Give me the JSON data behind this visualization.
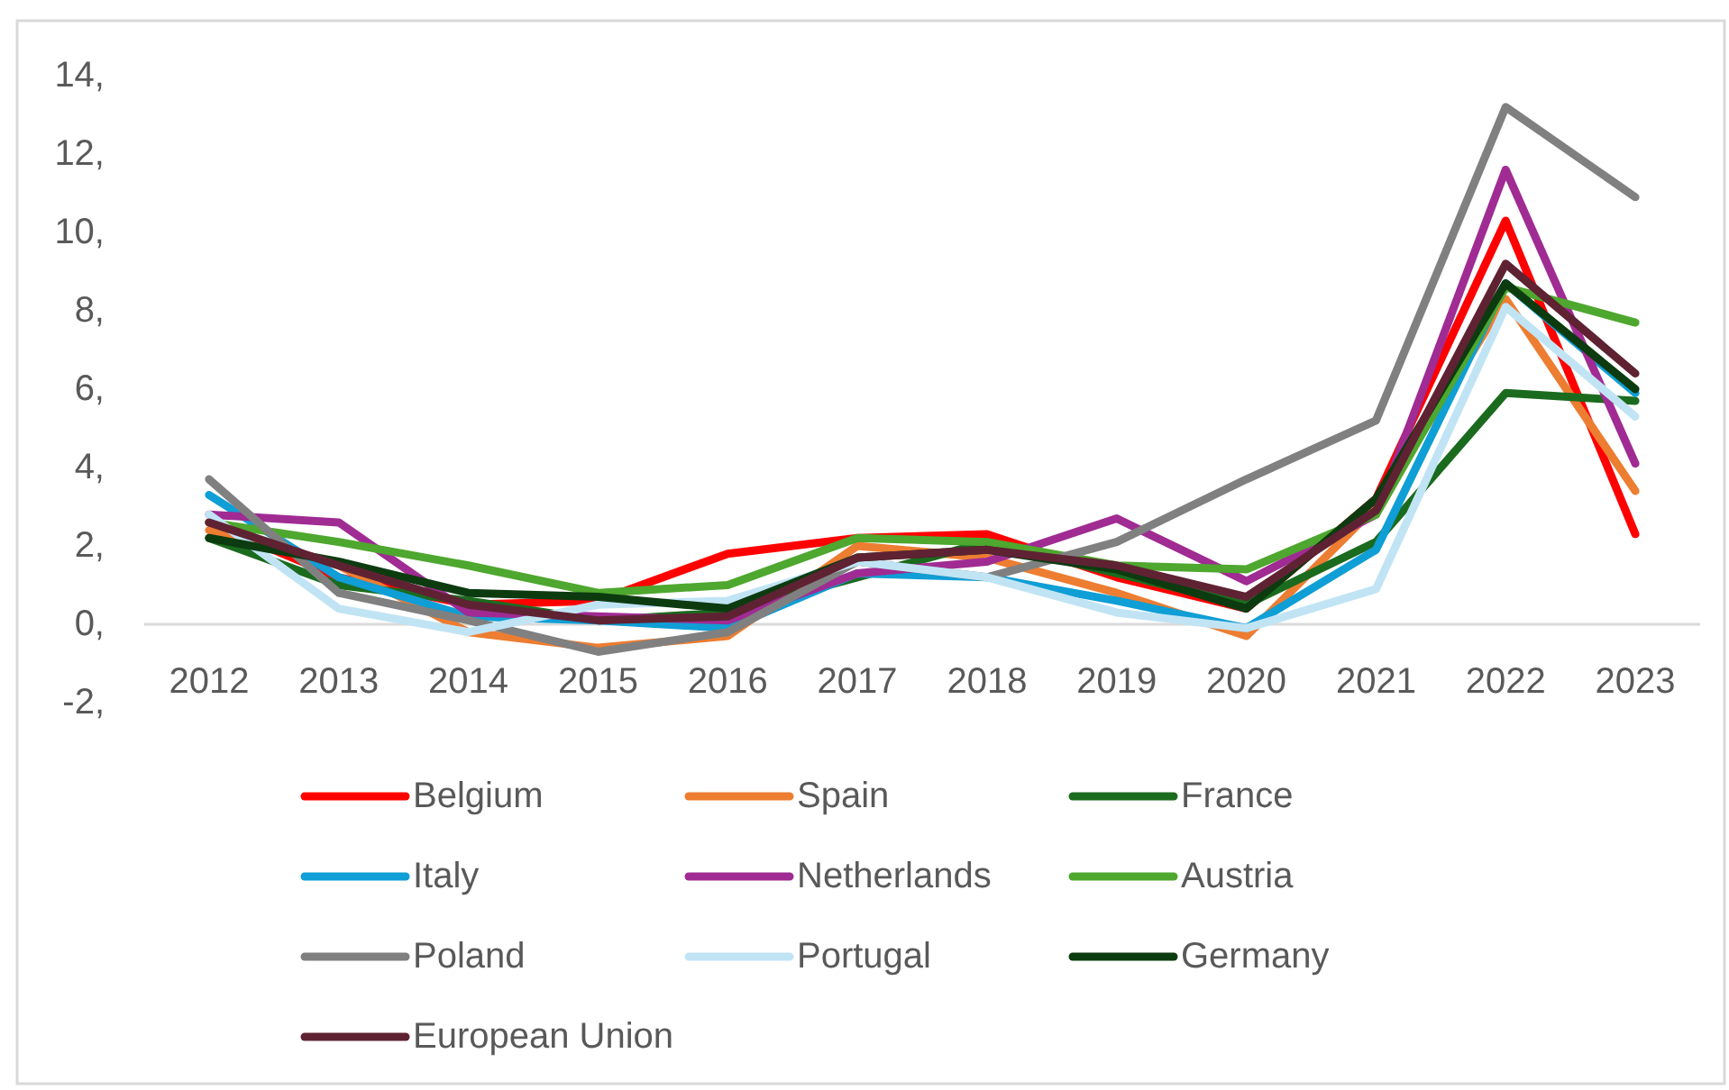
{
  "chart_data": {
    "type": "line",
    "categories": [
      "2012",
      "2013",
      "2014",
      "2015",
      "2016",
      "2017",
      "2018",
      "2019",
      "2020",
      "2021",
      "2022",
      "2023"
    ],
    "ylim": [
      -2,
      14
    ],
    "yticks": [
      {
        "value": -2,
        "label": "-2,"
      },
      {
        "value": 0,
        "label": "0,"
      },
      {
        "value": 2,
        "label": "2,"
      },
      {
        "value": 4,
        "label": "4,"
      },
      {
        "value": 6,
        "label": "6,"
      },
      {
        "value": 8,
        "label": "8,"
      },
      {
        "value": 10,
        "label": "10,"
      },
      {
        "value": 12,
        "label": "12,"
      },
      {
        "value": 14,
        "label": "14,"
      }
    ],
    "legend": "bottom",
    "series": [
      {
        "name": "Belgium",
        "color": "#ff0000",
        "values": [
          2.6,
          1.2,
          0.5,
          0.6,
          1.8,
          2.2,
          2.3,
          1.2,
          0.4,
          3.2,
          10.3,
          2.3
        ]
      },
      {
        "name": "Spain",
        "color": "#ed7d31",
        "values": [
          2.4,
          1.5,
          -0.2,
          -0.6,
          -0.3,
          2.0,
          1.7,
          0.8,
          -0.3,
          3.0,
          8.3,
          3.4
        ]
      },
      {
        "name": "France",
        "color": "#1b6b1f",
        "values": [
          2.2,
          1.0,
          0.6,
          0.1,
          0.3,
          1.2,
          2.1,
          1.3,
          0.5,
          2.1,
          5.9,
          5.7
        ]
      },
      {
        "name": "Italy",
        "color": "#0f9ed5",
        "values": [
          3.3,
          1.2,
          0.2,
          0.1,
          -0.1,
          1.3,
          1.2,
          0.6,
          -0.1,
          1.9,
          8.7,
          5.9
        ]
      },
      {
        "name": "Netherlands",
        "color": "#a02b93",
        "values": [
          2.8,
          2.6,
          0.3,
          0.2,
          0.1,
          1.3,
          1.6,
          2.7,
          1.1,
          2.8,
          11.6,
          4.1
        ]
      },
      {
        "name": "Austria",
        "color": "#4ea72e",
        "values": [
          2.6,
          2.1,
          1.5,
          0.8,
          1.0,
          2.2,
          2.1,
          1.5,
          1.4,
          2.8,
          8.6,
          7.7
        ]
      },
      {
        "name": "Poland",
        "color": "#808080",
        "values": [
          3.7,
          0.8,
          0.1,
          -0.7,
          -0.2,
          1.6,
          1.2,
          2.1,
          3.7,
          5.2,
          13.2,
          10.9
        ]
      },
      {
        "name": "Portugal",
        "color": "#c1e4f5",
        "values": [
          2.8,
          0.4,
          -0.2,
          0.5,
          0.6,
          1.6,
          1.2,
          0.3,
          -0.1,
          0.9,
          8.1,
          5.3
        ]
      },
      {
        "name": "Germany",
        "color": "#0c3b10",
        "values": [
          2.2,
          1.6,
          0.8,
          0.7,
          0.4,
          1.7,
          1.9,
          1.4,
          0.4,
          3.2,
          8.7,
          6.0
        ]
      },
      {
        "name": "European Union",
        "color": "#5f2233",
        "values": [
          2.6,
          1.5,
          0.5,
          0.1,
          0.2,
          1.7,
          1.9,
          1.5,
          0.7,
          2.9,
          9.2,
          6.4
        ]
      }
    ]
  }
}
